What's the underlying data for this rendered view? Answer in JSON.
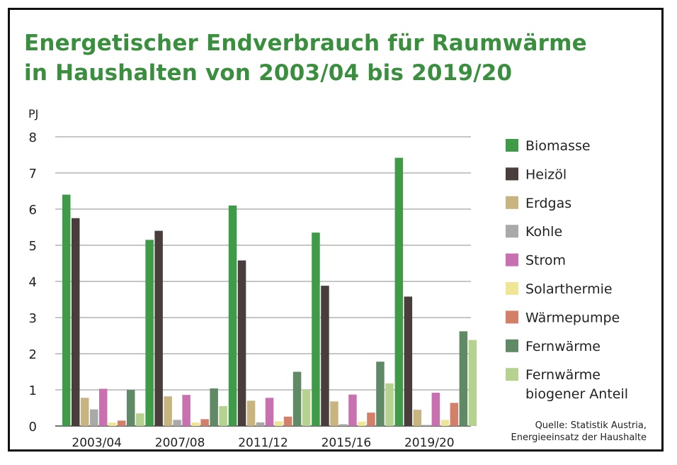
{
  "chart_data": {
    "type": "bar",
    "title": [
      "Energetischer Endverbrauch für Raumwärme",
      "in Haushalten von 2003/04 bis 2019/20"
    ],
    "ylabel": "PJ",
    "ylim": [
      0,
      8
    ],
    "yticks": [
      "0",
      "1",
      "2",
      "3",
      "4",
      "5",
      "6",
      "7",
      "8"
    ],
    "grid": true,
    "legend_position": "right",
    "categories": [
      "2003/04",
      "2007/08",
      "2011/12",
      "2015/16",
      "2019/20"
    ],
    "series": [
      {
        "name": "Biomasse",
        "color": "#3f9b47",
        "values": [
          6.4,
          5.15,
          6.1,
          5.35,
          7.42
        ]
      },
      {
        "name": "Heizöl",
        "color": "#4a3e3c",
        "values": [
          5.75,
          5.4,
          4.58,
          3.88,
          3.58
        ]
      },
      {
        "name": "Erdgas",
        "color": "#c8b47e",
        "values": [
          0.78,
          0.82,
          0.7,
          0.68,
          0.45
        ]
      },
      {
        "name": "Kohle",
        "color": "#a9a9a9",
        "values": [
          0.46,
          0.17,
          0.1,
          0.05,
          0.03
        ]
      },
      {
        "name": "Strom",
        "color": "#c970b0",
        "values": [
          1.03,
          0.86,
          0.78,
          0.87,
          0.92
        ]
      },
      {
        "name": "Solarthermie",
        "color": "#efe597",
        "values": [
          0.1,
          0.1,
          0.13,
          0.12,
          0.17
        ]
      },
      {
        "name": "Wärmepumpe",
        "color": "#d3806a",
        "values": [
          0.15,
          0.19,
          0.26,
          0.37,
          0.64
        ]
      },
      {
        "name": "Fernwärme",
        "color": "#5f8a65",
        "values": [
          1.0,
          1.04,
          1.5,
          1.78,
          2.62
        ]
      },
      {
        "name": "Fernwärme biogener Anteil",
        "color": "#b5d28e",
        "values": [
          0.35,
          0.55,
          1.0,
          1.18,
          2.38
        ]
      }
    ],
    "legend": [
      "Biomasse",
      "Heizöl",
      "Erdgas",
      "Kohle",
      "Strom",
      "Solarthermie",
      "Wärmepumpe",
      "Fernwärme",
      [
        "Fernwärme",
        "biogener Anteil"
      ]
    ],
    "source": [
      "Quelle: Statistik Austria,",
      "Energieeinsatz der Haushalte"
    ]
  }
}
